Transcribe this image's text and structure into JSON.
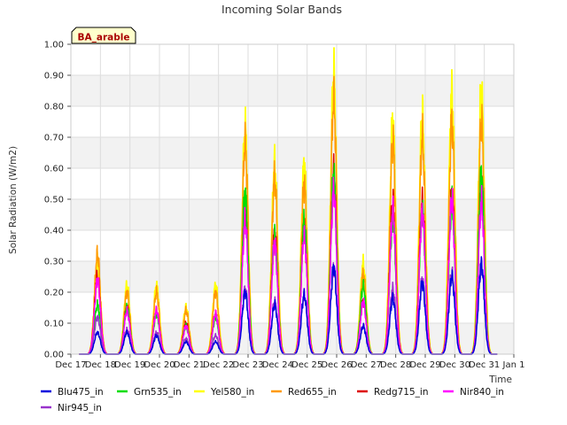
{
  "chart_data": {
    "type": "line",
    "title": "Incoming Solar Bands",
    "ylabel": "Solar Radiation (W/m2)",
    "xlabel": "Time",
    "badge": "BA_arable",
    "ylim": [
      0,
      1.0
    ],
    "yticks": [
      0.0,
      0.1,
      0.2,
      0.3,
      0.4,
      0.5,
      0.6,
      0.7,
      0.8,
      0.9,
      1.0
    ],
    "ytick_labels": [
      "0.00",
      "0.10",
      "0.20",
      "0.30",
      "0.40",
      "0.50",
      "0.60",
      "0.70",
      "0.80",
      "0.90",
      "1.00"
    ],
    "xlim_days": [
      17,
      32
    ],
    "xticks": [
      17,
      18,
      19,
      20,
      21,
      22,
      23,
      24,
      25,
      26,
      27,
      28,
      29,
      30,
      31,
      32
    ],
    "xtick_labels": [
      "Dec 17",
      "Dec 18",
      "Dec 19",
      "Dec 20",
      "Dec 21",
      "Dec 22",
      "Dec 23",
      "Dec 24",
      "Dec 25",
      "Dec 26",
      "Dec 27",
      "Dec 28",
      "Dec 29",
      "Dec 30",
      "Dec 31",
      "Jan 1"
    ],
    "grid": true,
    "legend_position": "bottom",
    "day_peaks": [
      17.9,
      18.9,
      19.9,
      20.9,
      21.9,
      22.9,
      23.9,
      24.9,
      25.9,
      26.9,
      27.9,
      28.9,
      29.9,
      30.9
    ],
    "series": [
      {
        "name": "Blu475_in",
        "color": "#0000dd",
        "peaks": [
          0.07,
          0.07,
          0.06,
          0.04,
          0.04,
          0.2,
          0.16,
          0.19,
          0.28,
          0.09,
          0.18,
          0.23,
          0.25,
          0.29
        ]
      },
      {
        "name": "Grn535_in",
        "color": "#00dd00",
        "peaks": [
          0.16,
          0.15,
          0.13,
          0.09,
          0.12,
          0.52,
          0.38,
          0.43,
          0.58,
          0.22,
          0.44,
          0.46,
          0.49,
          0.58
        ]
      },
      {
        "name": "Yel580_in",
        "color": "#ffff00",
        "peaks": [
          0.3,
          0.22,
          0.22,
          0.15,
          0.22,
          0.73,
          0.61,
          0.61,
          0.9,
          0.29,
          0.75,
          0.77,
          0.84,
          0.85
        ]
      },
      {
        "name": "Red655_in",
        "color": "#ff9900",
        "peaks": [
          0.32,
          0.2,
          0.2,
          0.14,
          0.2,
          0.68,
          0.57,
          0.55,
          0.82,
          0.26,
          0.69,
          0.7,
          0.75,
          0.75
        ]
      },
      {
        "name": "Redg715_in",
        "color": "#dd0000",
        "peaks": [
          0.25,
          0.15,
          0.14,
          0.1,
          0.13,
          0.47,
          0.39,
          0.4,
          0.58,
          0.17,
          0.49,
          0.49,
          0.52,
          0.53
        ]
      },
      {
        "name": "Nir840_in",
        "color": "#ff00ff",
        "peaks": [
          0.24,
          0.14,
          0.14,
          0.09,
          0.13,
          0.43,
          0.36,
          0.38,
          0.53,
          0.17,
          0.46,
          0.46,
          0.5,
          0.49
        ]
      },
      {
        "name": "Nir945_in",
        "color": "#9933cc",
        "peaks": [
          0.12,
          0.08,
          0.07,
          0.05,
          0.06,
          0.21,
          0.17,
          0.19,
          0.28,
          0.09,
          0.21,
          0.24,
          0.26,
          0.29
        ]
      }
    ]
  }
}
